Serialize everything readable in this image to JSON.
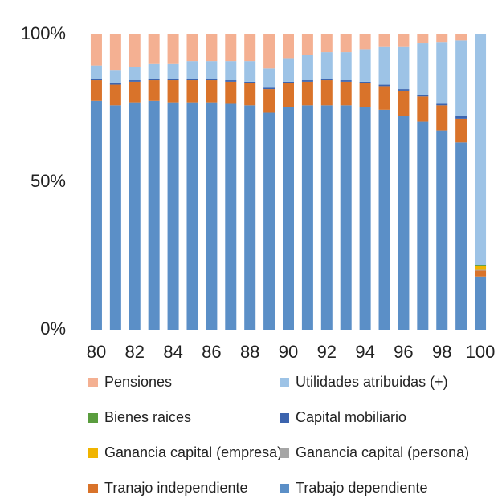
{
  "chart_data": {
    "type": "stacked_bar",
    "categories": [
      "80",
      null,
      "82",
      null,
      "84",
      null,
      "86",
      null,
      "88",
      null,
      "90",
      null,
      "92",
      null,
      "94",
      null,
      "96",
      null,
      "98",
      null,
      "100"
    ],
    "ylim": [
      0,
      100
    ],
    "yticks": [
      {
        "value": 0,
        "label": "0%"
      },
      {
        "value": 50,
        "label": "50%"
      },
      {
        "value": 100,
        "label": "100%"
      }
    ],
    "legend": "bottom",
    "series": [
      {
        "name": "Trabajo dependiente",
        "color": "#5b8fc7",
        "values": [
          77.5,
          76,
          77,
          77.5,
          77,
          77,
          77,
          76.5,
          76,
          73.5,
          75.5,
          76,
          76,
          76,
          75.5,
          74.5,
          72.5,
          70.5,
          67.5,
          63.5,
          18
        ]
      },
      {
        "name": "Tranajo independiente",
        "color": "#d9732a",
        "values": [
          7,
          7,
          7,
          7,
          7.5,
          7.5,
          7.5,
          7.5,
          7.5,
          8,
          8,
          8,
          8.5,
          8,
          8,
          8,
          8.5,
          8.5,
          8.5,
          8,
          2
        ]
      },
      {
        "name": "Ganancia capital (persona)",
        "color": "#a5a5a5",
        "values": [
          0,
          0,
          0,
          0,
          0,
          0,
          0,
          0,
          0,
          0,
          0,
          0,
          0,
          0,
          0,
          0,
          0,
          0,
          0,
          0,
          0.5
        ]
      },
      {
        "name": "Ganancia capital (empresa)",
        "color": "#f0b400",
        "values": [
          0,
          0,
          0,
          0,
          0,
          0,
          0,
          0,
          0,
          0,
          0,
          0,
          0,
          0,
          0,
          0,
          0,
          0,
          0,
          0,
          1
        ]
      },
      {
        "name": "Capital mobiliario",
        "color": "#3c64ae",
        "values": [
          0.5,
          0.5,
          0.5,
          0.5,
          0.5,
          0.5,
          0.5,
          0.5,
          0.5,
          0.5,
          0.5,
          0.5,
          0.5,
          0.5,
          0.5,
          0.5,
          0.5,
          0.5,
          0.5,
          1,
          0.2
        ]
      },
      {
        "name": "Bienes raices",
        "color": "#5a9d3e",
        "values": [
          0,
          0,
          0,
          0,
          0,
          0,
          0,
          0,
          0,
          0,
          0,
          0,
          0,
          0,
          0,
          0,
          0,
          0,
          0,
          0,
          0.3
        ]
      },
      {
        "name": "Utilidades atribuidas (+)",
        "color": "#9dc3e6",
        "values": [
          4.5,
          4.5,
          4.5,
          5,
          5,
          6,
          6,
          6.5,
          7,
          6.5,
          8,
          8.5,
          9,
          9.5,
          11,
          13,
          14.5,
          17.5,
          21,
          25.5,
          78
        ]
      },
      {
        "name": "Pensiones",
        "color": "#f4b092",
        "values": [
          10.5,
          12,
          11,
          10,
          10,
          9,
          9,
          9,
          9,
          11.5,
          8,
          7,
          6,
          6,
          5,
          4,
          4,
          3,
          2.5,
          2,
          0
        ]
      }
    ]
  }
}
